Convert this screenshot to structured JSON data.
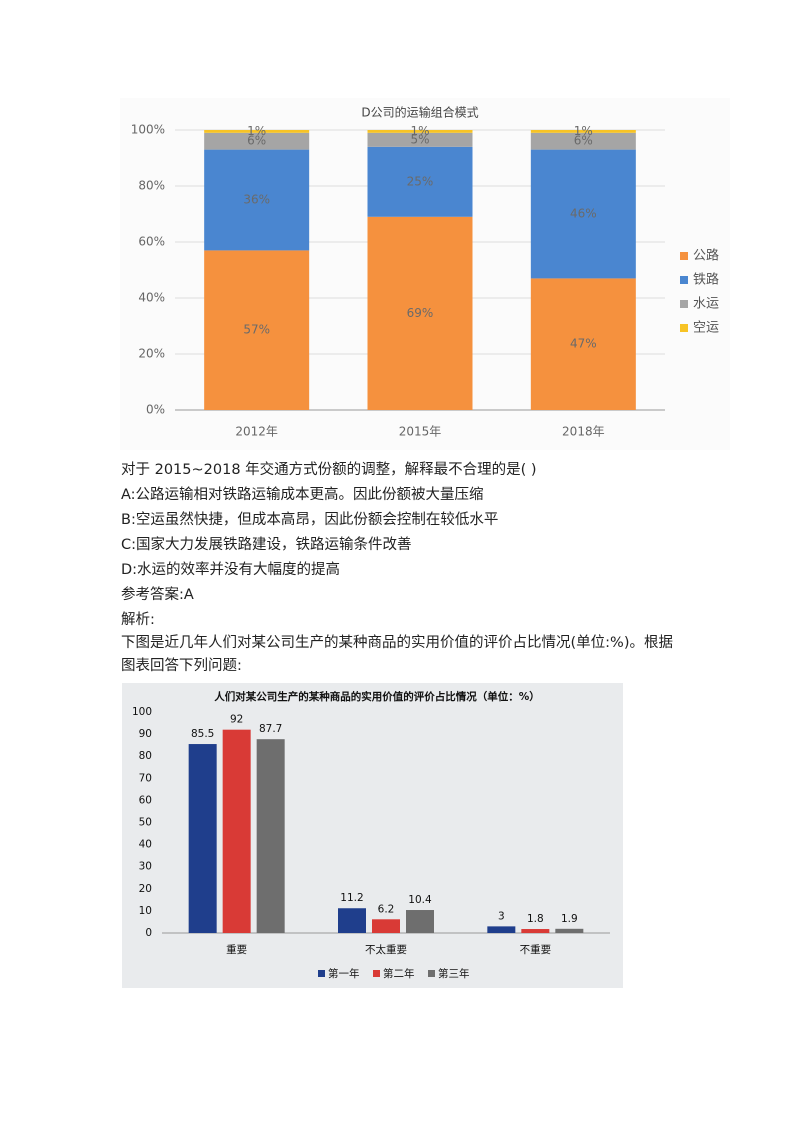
{
  "chart_data": [
    {
      "type": "bar",
      "stacked": true,
      "title": "D公司的运输组合模式",
      "categories": [
        "2012年",
        "2015年",
        "2018年"
      ],
      "series": [
        {
          "name": "公路",
          "color": "#f5913e",
          "values": [
            57,
            69,
            47
          ],
          "value_labels": [
            "57%",
            "69%",
            "47%"
          ]
        },
        {
          "name": "铁路",
          "color": "#4a86d0",
          "values": [
            36,
            25,
            46
          ],
          "value_labels": [
            "36%",
            "25%",
            "46%"
          ]
        },
        {
          "name": "水运",
          "color": "#a5a5a5",
          "values": [
            6,
            5,
            6
          ],
          "value_labels": [
            "6%",
            "5%",
            "6%"
          ]
        },
        {
          "name": "空运",
          "color": "#f7c325",
          "values": [
            1,
            1,
            1
          ],
          "value_labels": [
            "1%",
            "1%",
            "1%"
          ]
        }
      ],
      "ylim": [
        0,
        100
      ],
      "yticks": [
        {
          "value": 0,
          "label": "0%"
        },
        {
          "value": 20,
          "label": "20%"
        },
        {
          "value": 40,
          "label": "40%"
        },
        {
          "value": 60,
          "label": "60%"
        },
        {
          "value": 80,
          "label": "80%"
        },
        {
          "value": 100,
          "label": "100%"
        }
      ],
      "grid": true,
      "legend": "right"
    },
    {
      "type": "bar",
      "stacked": false,
      "title": "人们对某公司生产的某种商品的实用价值的评价占比情况（单位：%）",
      "categories": [
        "重要",
        "不太重要",
        "不重要"
      ],
      "series": [
        {
          "name": "第一年",
          "color": "#1f3e8c",
          "values": [
            85.5,
            11.2,
            3
          ]
        },
        {
          "name": "第二年",
          "color": "#d93a36",
          "values": [
            92,
            6.2,
            1.8
          ]
        },
        {
          "name": "第三年",
          "color": "#6e6e6e",
          "values": [
            87.7,
            10.4,
            1.9
          ]
        }
      ],
      "ylim": [
        0,
        100
      ],
      "yticks": [
        0,
        10,
        20,
        30,
        40,
        50,
        60,
        70,
        80,
        90,
        100
      ],
      "grid": false,
      "legend": "bottom"
    }
  ],
  "document": {
    "question": "对于 2015~2018 年交通方式份额的调整，解释最不合理的是( )",
    "options": [
      "A:公路运输相对铁路运输成本更高。因此份额被大量压缩",
      "B:空运虽然快捷，但成本高昂，因此份额会控制在较低水平",
      "C:国家大力发展铁路建设，铁路运输条件改善",
      "D:水运的效率并没有大幅度的提高"
    ],
    "answer": "参考答案:A",
    "analysis": "解析:",
    "paragraph": "下图是近几年人们对某公司生产的某种商品的实用价值的评价占比情况(单位:%)。根据图表回答下列问题:"
  }
}
